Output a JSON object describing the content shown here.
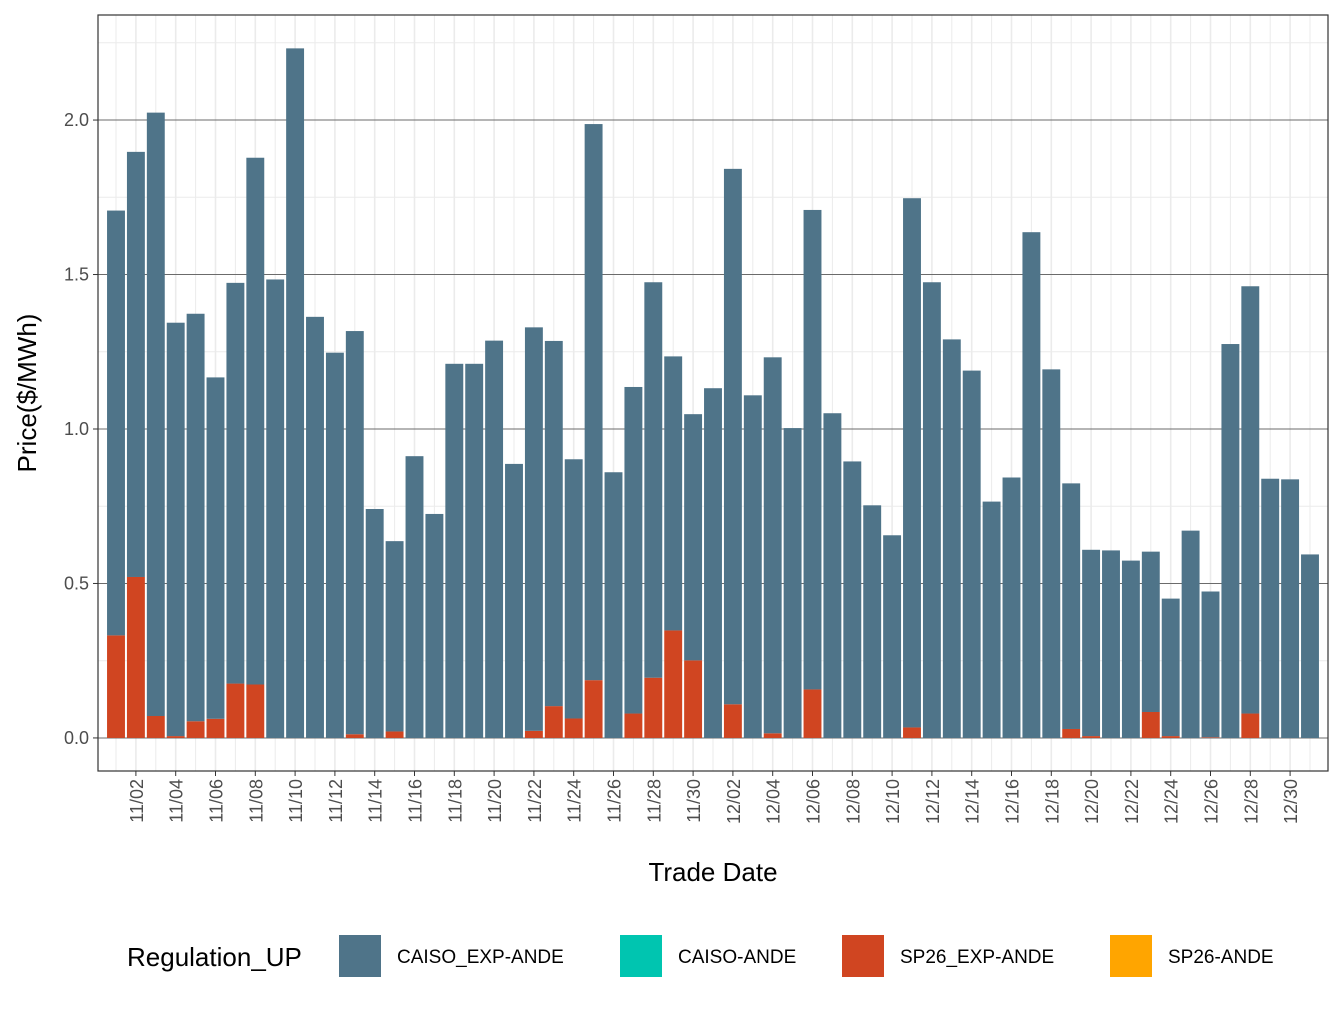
{
  "chart_data": {
    "type": "bar",
    "stacked": true,
    "xlabel": "Trade Date",
    "ylabel": "Price($/MWh)",
    "ylim": [
      -0.107,
      2.34
    ],
    "yticks": [
      0.0,
      0.5,
      1.0,
      1.5,
      2.0
    ],
    "ytick_labels": [
      "0.0",
      "0.5",
      "1.0",
      "1.5",
      "2.0"
    ],
    "grid": true,
    "legend": {
      "title": "Regulation_UP",
      "position": "bottom"
    },
    "categories": [
      "11/01",
      "11/02",
      "11/03",
      "11/04",
      "11/05",
      "11/06",
      "11/07",
      "11/08",
      "11/09",
      "11/10",
      "11/11",
      "11/12",
      "11/13",
      "11/14",
      "11/15",
      "11/16",
      "11/17",
      "11/18",
      "11/19",
      "11/20",
      "11/21",
      "11/22",
      "11/23",
      "11/24",
      "11/25",
      "11/26",
      "11/27",
      "11/28",
      "11/29",
      "11/30",
      "12/01",
      "12/02",
      "12/03",
      "12/04",
      "12/05",
      "12/06",
      "12/07",
      "12/08",
      "12/09",
      "12/10",
      "12/11",
      "12/12",
      "12/13",
      "12/14",
      "12/15",
      "12/16",
      "12/17",
      "12/18",
      "12/19",
      "12/20",
      "12/21",
      "12/22",
      "12/23",
      "12/24",
      "12/25",
      "12/26",
      "12/27",
      "12/28",
      "12/29",
      "12/30",
      "12/31"
    ],
    "xtick_labels": [
      "11/02",
      "11/04",
      "11/06",
      "11/08",
      "11/10",
      "11/12",
      "11/14",
      "11/16",
      "11/18",
      "11/20",
      "11/22",
      "11/24",
      "11/26",
      "11/28",
      "11/30",
      "12/02",
      "12/04",
      "12/06",
      "12/08",
      "12/10",
      "12/12",
      "12/14",
      "12/16",
      "12/18",
      "12/20",
      "12/22",
      "12/24",
      "12/26",
      "12/28",
      "12/30"
    ],
    "series": [
      {
        "name": "CAISO_EXP-ANDE",
        "color": "#4f7489",
        "values": [
          1.375,
          1.376,
          1.953,
          1.338,
          1.319,
          1.105,
          1.297,
          1.705,
          1.484,
          2.232,
          1.363,
          1.247,
          1.305,
          0.741,
          0.616,
          0.912,
          0.725,
          1.211,
          1.211,
          1.286,
          0.887,
          1.306,
          1.182,
          0.839,
          1.8,
          0.86,
          1.057,
          1.28,
          0.887,
          0.797,
          1.132,
          1.733,
          1.109,
          1.217,
          1.003,
          1.552,
          1.051,
          0.895,
          0.753,
          0.656,
          1.713,
          1.475,
          1.29,
          1.189,
          0.765,
          0.843,
          1.637,
          1.193,
          0.795,
          0.603,
          0.607,
          0.574,
          0.519,
          0.445,
          0.671,
          0.472,
          1.275,
          1.383,
          0.839,
          0.837,
          0.594
        ]
      },
      {
        "name": "CAISO-ANDE",
        "color": "#00c5b0",
        "values": [
          0,
          0,
          0,
          0,
          0,
          0,
          0,
          0,
          0,
          0,
          0,
          0,
          0,
          0,
          0,
          0,
          0,
          0,
          0,
          0,
          0,
          0,
          0,
          0,
          0,
          0,
          0,
          0,
          0,
          0,
          0,
          0,
          0,
          0,
          0,
          0,
          0,
          0,
          0,
          0,
          0,
          0,
          0,
          0,
          0,
          0,
          0,
          0,
          0,
          0,
          0,
          0,
          0,
          0,
          0,
          0,
          0,
          0,
          0,
          0,
          0
        ]
      },
      {
        "name": "SP26_EXP-ANDE",
        "color": "#d04521",
        "values": [
          0.332,
          0.521,
          0.071,
          0.006,
          0.054,
          0.062,
          0.176,
          0.173,
          0,
          0,
          0,
          0,
          0.012,
          0,
          0.021,
          0,
          0,
          0,
          0,
          0,
          0,
          0.023,
          0.103,
          0.063,
          0.187,
          0,
          0.079,
          0.195,
          0.348,
          0.251,
          0,
          0.109,
          0,
          0.015,
          0,
          0.157,
          0,
          0,
          0,
          0,
          0.034,
          0,
          0,
          0,
          0,
          0,
          0,
          0,
          0.029,
          0.006,
          0,
          0,
          0.084,
          0.006,
          0,
          0.002,
          0,
          0.079,
          0,
          0,
          0
        ]
      },
      {
        "name": "SP26-ANDE",
        "color": "#ffa500",
        "values": [
          0,
          0,
          0,
          0,
          0,
          0,
          0,
          0,
          0,
          0,
          0,
          0,
          0,
          0,
          0,
          0,
          0,
          0,
          0,
          0,
          0,
          0,
          0,
          0,
          0,
          0,
          0,
          0,
          0,
          0,
          0,
          0,
          0,
          0,
          0,
          0,
          0,
          0,
          0,
          0,
          0,
          0,
          0,
          0,
          0,
          0,
          0,
          0,
          0,
          0,
          0,
          0,
          0,
          0,
          0,
          0,
          0,
          0,
          0,
          0,
          0
        ]
      }
    ]
  }
}
